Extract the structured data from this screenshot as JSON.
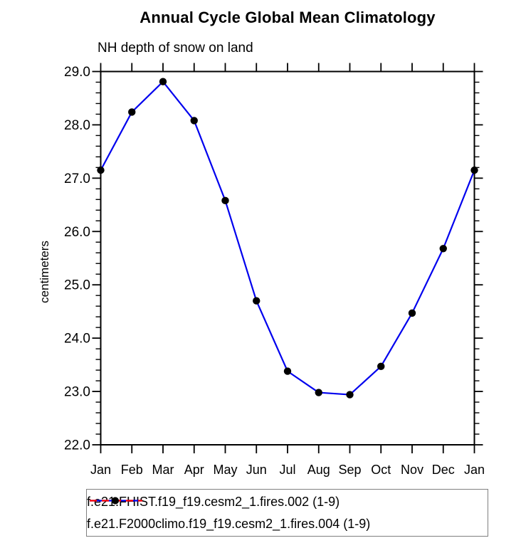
{
  "title": "Annual Cycle Global Mean Climatology",
  "subtitle": "NH depth of snow on land",
  "y_axis_title": "centimeters",
  "colors": {
    "series1_line": "#0000ee",
    "series2_line": "#ff0000",
    "marker": "#000000",
    "axis": "#000000",
    "legend_border": "#808080"
  },
  "chart_data": {
    "type": "line",
    "x_categories": [
      "Jan",
      "Feb",
      "Mar",
      "Apr",
      "May",
      "Jun",
      "Jul",
      "Aug",
      "Sep",
      "Oct",
      "Nov",
      "Dec",
      "Jan"
    ],
    "xlabel": "",
    "ylabel": "centimeters",
    "ylim": [
      22.0,
      29.0
    ],
    "y_major_tick_interval": 1.0,
    "y_minor_tick_interval": 0.2,
    "y_tick_labels": [
      "22.0",
      "23.0",
      "24.0",
      "25.0",
      "26.0",
      "27.0",
      "28.0",
      "29.0"
    ],
    "grid": false,
    "legend_position": "bottom",
    "series": [
      {
        "name": "f.e21.FHIST.f19_f19.cesm2_1.fires.002 (1-9)",
        "color": "#0000ee",
        "line_style": "solid",
        "marker": "filled-circle",
        "marker_color": "#000000",
        "values": [
          27.15,
          28.24,
          28.81,
          28.08,
          26.58,
          24.7,
          23.38,
          22.98,
          22.94,
          23.47,
          24.47,
          25.68,
          27.15
        ]
      },
      {
        "name": "f.e21.F2000climo.f19_f19.cesm2_1.fires.004 (1-9)",
        "color": "#ff0000",
        "line_style": "dashed",
        "marker": "filled-circle",
        "marker_color": "#000000",
        "plot_visible": false,
        "values": []
      }
    ]
  }
}
